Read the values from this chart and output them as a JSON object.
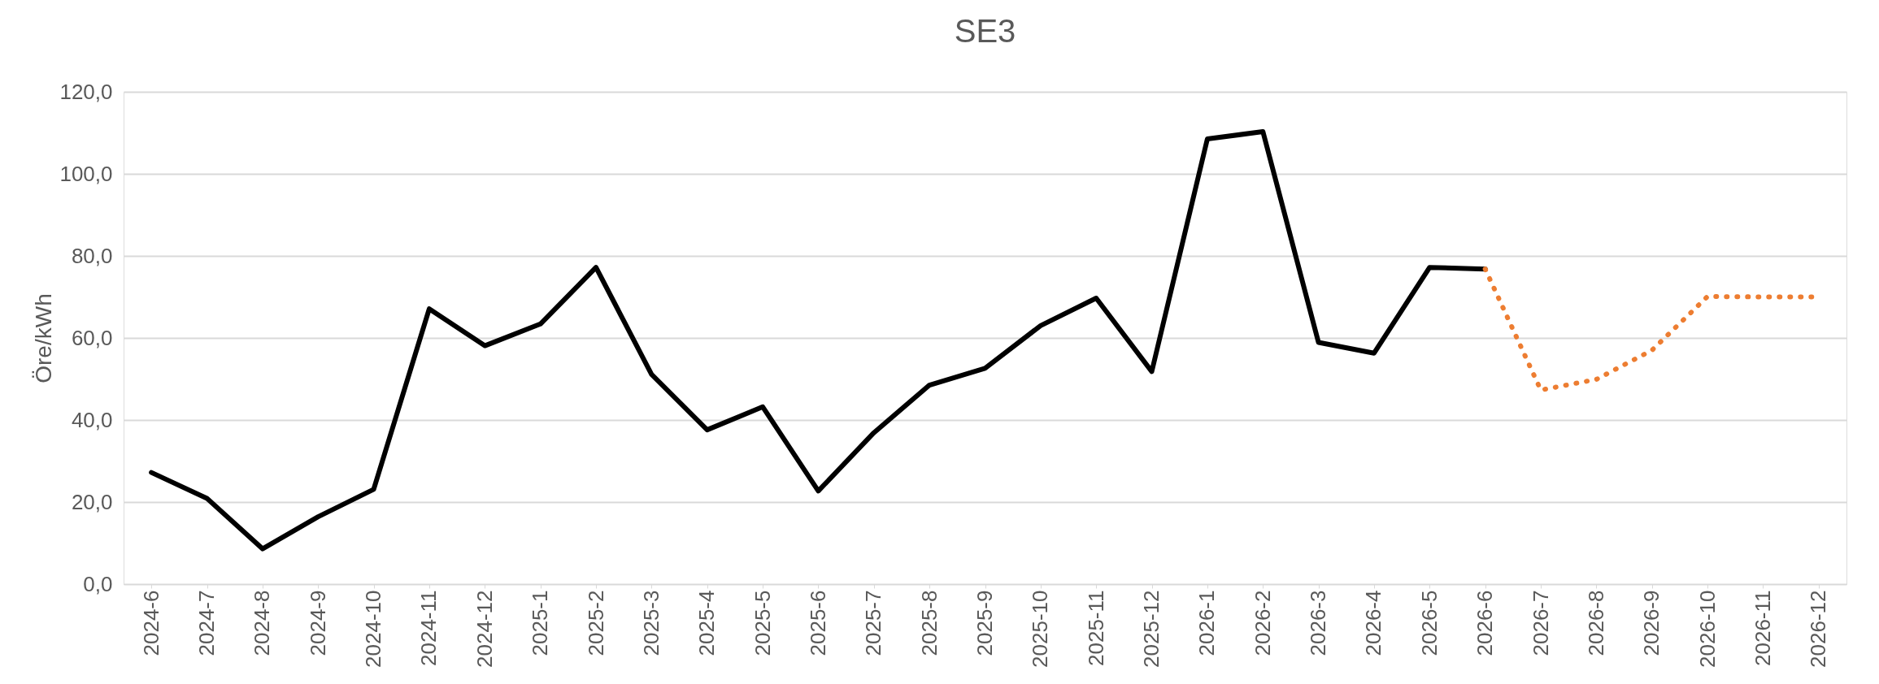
{
  "chart_data": {
    "type": "line",
    "title": "SE3",
    "ylabel": "Öre/kWh",
    "categories": [
      "2024-6",
      "2024-7",
      "2024-8",
      "2024-9",
      "2024-10",
      "2024-11",
      "2024-12",
      "2025-1",
      "2025-2",
      "2025-3",
      "2025-4",
      "2025-5",
      "2025-6",
      "2025-7",
      "2025-8",
      "2025-9",
      "2025-10",
      "2025-11",
      "2025-12",
      "2026-1",
      "2026-2",
      "2026-3",
      "2026-4",
      "2026-5",
      "2026-6",
      "2026-7",
      "2026-8",
      "2026-9",
      "2026-10",
      "2026-11",
      "2026-12"
    ],
    "series": [
      {
        "color": "#000000",
        "line_style": "solid",
        "values": [
          27.2,
          20.9,
          8.6,
          16.4,
          23.1,
          67.1,
          58.1,
          63.4,
          77.2,
          51.1,
          37.6,
          43.2,
          22.7,
          36.9,
          48.5,
          52.6,
          63.0,
          69.7,
          51.8,
          108.5,
          110.3,
          58.9,
          56.3,
          77.2,
          76.8,
          null,
          null,
          null,
          null,
          null,
          null
        ]
      },
      {
        "color": "#ed7d31",
        "line_style": "dotted",
        "values": [
          null,
          null,
          null,
          null,
          null,
          null,
          null,
          null,
          null,
          null,
          null,
          null,
          null,
          null,
          null,
          null,
          null,
          null,
          null,
          null,
          null,
          null,
          null,
          null,
          76.8,
          47.3,
          49.9,
          57.0,
          70.1,
          70.0,
          70.0
        ]
      }
    ],
    "ylim": [
      0,
      120
    ],
    "yticks": [
      {
        "value": 0,
        "label": "0,0"
      },
      {
        "value": 20,
        "label": "20,0"
      },
      {
        "value": 40,
        "label": "40,0"
      },
      {
        "value": 60,
        "label": "60,0"
      },
      {
        "value": 80,
        "label": "80,0"
      },
      {
        "value": 100,
        "label": "100,0"
      },
      {
        "value": 120,
        "label": "120,0"
      }
    ],
    "grid": "y",
    "marker": "none"
  }
}
